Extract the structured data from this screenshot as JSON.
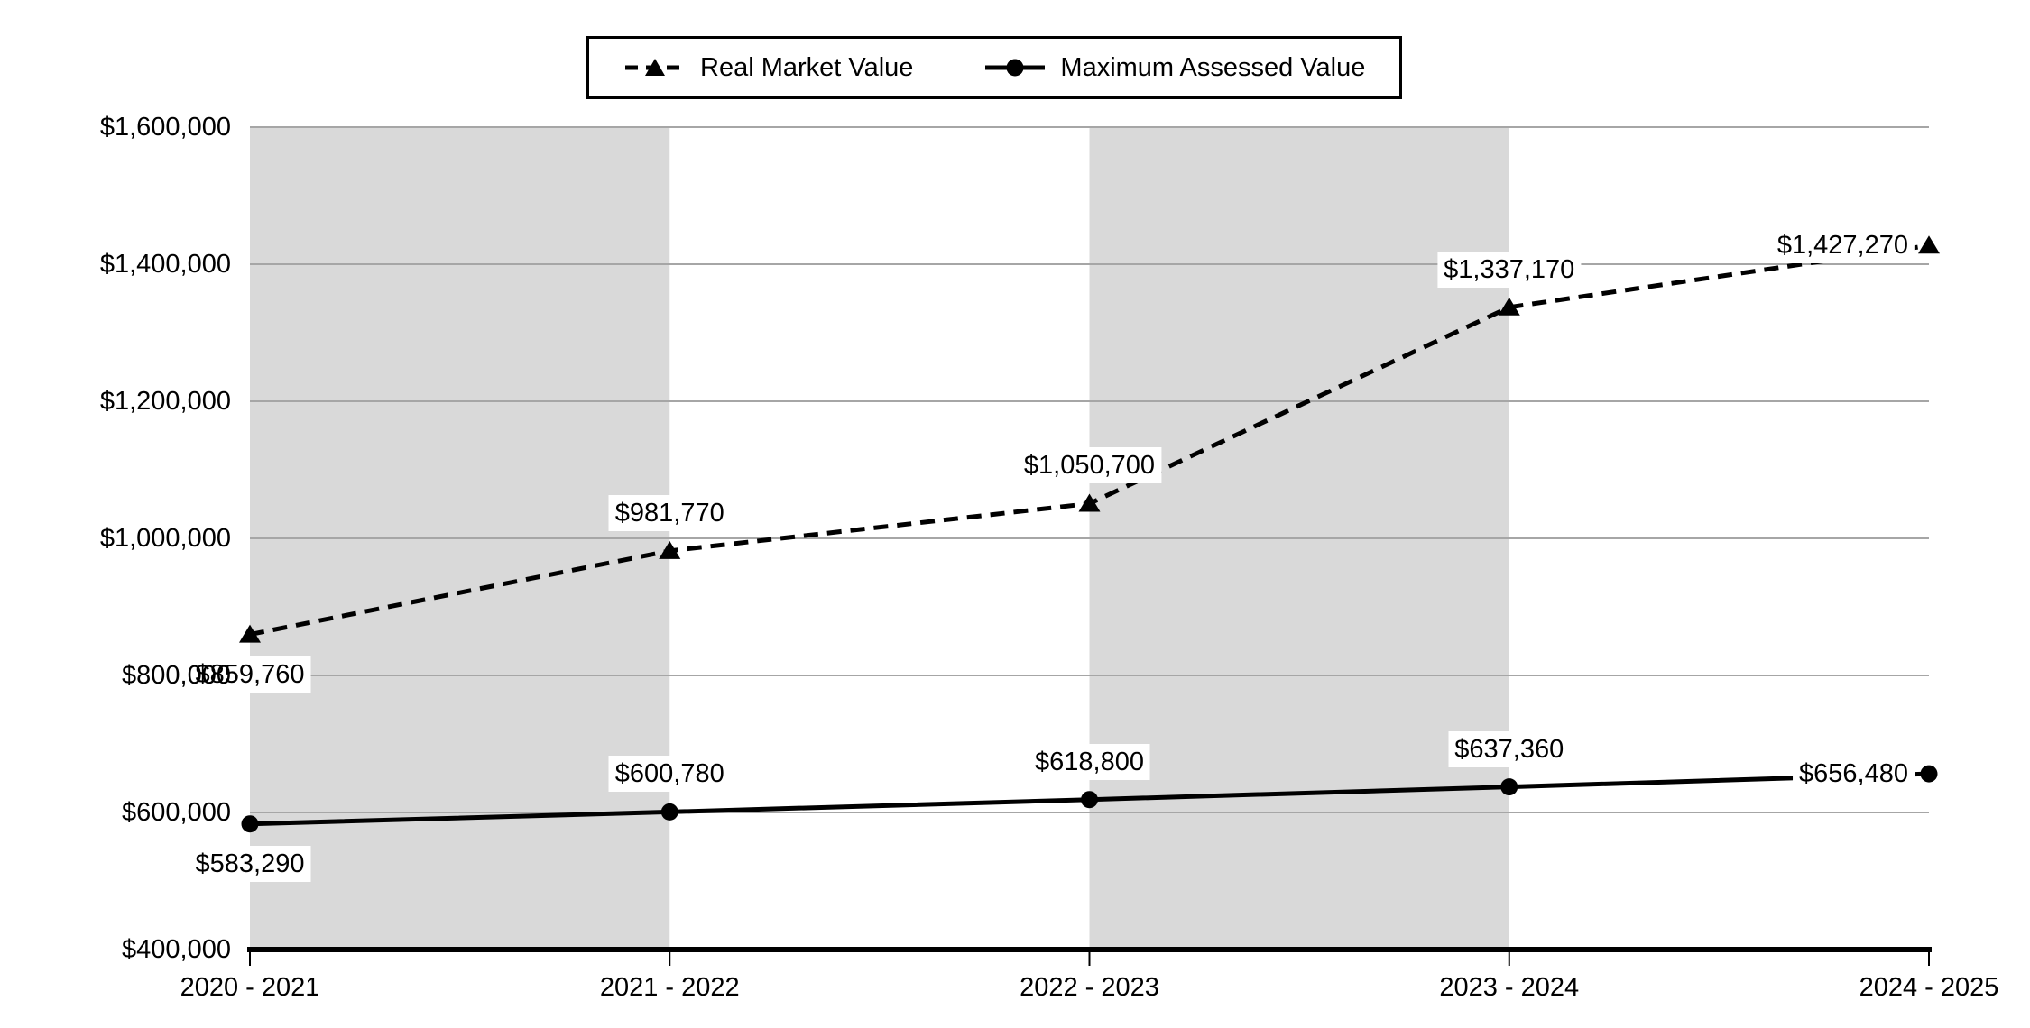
{
  "chart_data": {
    "type": "line",
    "title": "",
    "categories": [
      "2020 - 2021",
      "2021 - 2022",
      "2022 - 2023",
      "2023 - 2024",
      "2024 - 2025"
    ],
    "y_ticks": [
      "$1,600,000",
      "$1,400,000",
      "$1,200,000",
      "$1,000,000",
      "$800,000",
      "$600,000",
      "$400,000"
    ],
    "ylim": [
      400000,
      1600000
    ],
    "y_tick_step": 200000,
    "grid": "horizontal",
    "legend_position": "top-center",
    "plot_bands": {
      "intervals": [
        [
          0,
          1
        ],
        [
          2,
          3
        ]
      ]
    },
    "series": [
      {
        "name": "Real Market Value",
        "style": "dashed",
        "marker": "triangle",
        "values": [
          859760,
          981770,
          1050700,
          1337170,
          1427270
        ],
        "labels": [
          "$859,760",
          "$981,770",
          "$1,050,700",
          "$1,337,170",
          "$1,427,270"
        ],
        "label_positions": [
          "below",
          "above",
          "above",
          "above",
          "left"
        ]
      },
      {
        "name": "Maximum Assessed Value",
        "style": "solid",
        "marker": "circle",
        "values": [
          583290,
          600780,
          618800,
          637360,
          656480
        ],
        "labels": [
          "$583,290",
          "$600,780",
          "$618,800",
          "$637,360",
          "$656,480"
        ],
        "label_positions": [
          "below",
          "above",
          "above",
          "above",
          "left"
        ]
      }
    ],
    "colors": {
      "line": "#000000",
      "band": "#d9d9d9",
      "gridline": "#a6a6a6",
      "axis": "#000000",
      "background": "#ffffff",
      "label_background": "#ffffff"
    }
  }
}
